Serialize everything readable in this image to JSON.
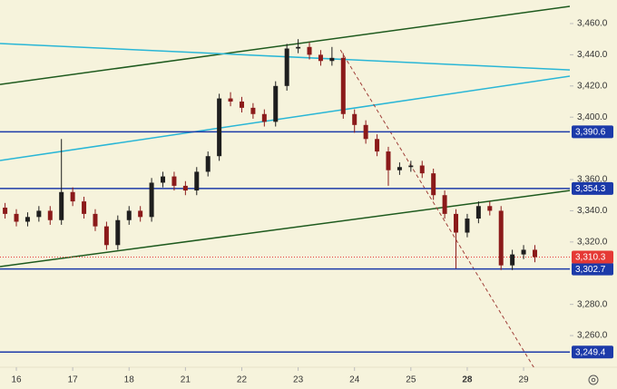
{
  "chart_data": {
    "type": "candlestick",
    "x": [
      -0.2,
      0,
      0.2,
      0.4,
      0.6,
      0.8,
      1,
      1.2,
      1.4,
      1.6,
      1.8,
      2,
      2.2,
      2.4,
      2.6,
      2.8,
      3,
      3.2,
      3.4,
      3.6,
      3.8,
      4,
      4.2,
      4.4,
      4.6,
      4.8,
      5,
      5.2,
      5.4,
      5.6,
      5.8,
      6,
      6.2,
      6.4,
      6.6,
      6.8,
      7,
      7.2,
      7.4,
      7.6,
      7.8,
      8,
      8.2,
      8.4,
      8.6,
      8.8,
      9,
      9.2
    ],
    "open": [
      3342,
      3338,
      3333,
      3336,
      3340,
      3334,
      3352,
      3346,
      3338,
      3330,
      3318,
      3334,
      3340,
      3336,
      3358,
      3362,
      3356,
      3353,
      3365,
      3375,
      3412,
      3410,
      3406,
      3402,
      3397,
      3420,
      3444,
      3445,
      3440,
      3436,
      3438,
      3402,
      3395,
      3386,
      3378,
      3366,
      3368,
      3369,
      3364,
      3350,
      3338,
      3326,
      3335,
      3343,
      3340,
      3305,
      3312,
      3315
    ],
    "high": [
      3345,
      3341,
      3339,
      3343,
      3343,
      3386,
      3355,
      3349,
      3341,
      3333,
      3337,
      3343,
      3343,
      3361,
      3365,
      3365,
      3359,
      3368,
      3378,
      3415,
      3416,
      3413,
      3409,
      3405,
      3423,
      3447,
      3450,
      3448,
      3443,
      3445,
      3441,
      3405,
      3398,
      3389,
      3381,
      3371,
      3372,
      3372,
      3367,
      3353,
      3341,
      3338,
      3346,
      3346,
      3343,
      3315,
      3318,
      3318
    ],
    "low": [
      3335,
      3330,
      3330,
      3333,
      3331,
      3331,
      3343,
      3335,
      3327,
      3315,
      3315,
      3331,
      3333,
      3333,
      3355,
      3353,
      3350,
      3350,
      3362,
      3372,
      3407,
      3403,
      3399,
      3394,
      3394,
      3417,
      3441,
      3437,
      3433,
      3433,
      3399,
      3390,
      3383,
      3375,
      3356,
      3363,
      3365,
      3361,
      3347,
      3335,
      3303,
      3323,
      3332,
      3337,
      3302,
      3302,
      3309,
      3307
    ],
    "close": [
      3338,
      3333,
      3336,
      3340,
      3334,
      3352,
      3346,
      3338,
      3330,
      3318,
      3334,
      3340,
      3336,
      3358,
      3362,
      3356,
      3353,
      3365,
      3375,
      3412,
      3410,
      3406,
      3402,
      3397,
      3420,
      3444,
      3445,
      3440,
      3436,
      3438,
      3402,
      3395,
      3386,
      3378,
      3366,
      3368,
      3369,
      3364,
      3350,
      3338,
      3326,
      3335,
      3343,
      3340,
      3305,
      3312,
      3315,
      3310.3
    ],
    "up_color": "#1e1e1e",
    "down_color": "#8b1a1a",
    "xlim": [
      -0.29,
      9.82
    ],
    "ylim": [
      3239.7,
      3475.1
    ],
    "xticks": [
      {
        "value": 0,
        "label": "16"
      },
      {
        "value": 1,
        "label": "17"
      },
      {
        "value": 2,
        "label": "18"
      },
      {
        "value": 3,
        "label": "21"
      },
      {
        "value": 4,
        "label": "22"
      },
      {
        "value": 5,
        "label": "23"
      },
      {
        "value": 6,
        "label": "24"
      },
      {
        "value": 7,
        "label": "25"
      },
      {
        "value": 8,
        "label": "28"
      },
      {
        "value": 9,
        "label": "29"
      }
    ],
    "yticks": [
      {
        "value": 3460,
        "label": "3,460.0"
      },
      {
        "value": 3440,
        "label": "3,440.0"
      },
      {
        "value": 3420,
        "label": "3,420.0"
      },
      {
        "value": 3400,
        "label": "3,400.0"
      },
      {
        "value": 3360,
        "label": "3,360.0"
      },
      {
        "value": 3340,
        "label": "3,340.0"
      },
      {
        "value": 3320,
        "label": "3,320.0"
      },
      {
        "value": 3280,
        "label": "3,280.0"
      },
      {
        "value": 3260,
        "label": "3,260.0"
      }
    ],
    "levels": [
      {
        "value": 3390.6,
        "label": "3,390.6",
        "color": "#1c3aa9"
      },
      {
        "value": 3354.3,
        "label": "3,354.3",
        "color": "#1c3aa9"
      },
      {
        "value": 3302.7,
        "label": "3,302.7",
        "color": "#1c3aa9"
      },
      {
        "value": 3249.4,
        "label": "3,249.4",
        "color": "#1c3aa9"
      },
      {
        "value": 3310.3,
        "label": "3,310.3",
        "color": "#e53935",
        "dotted": true
      }
    ],
    "trendlines": [
      {
        "color": "#1e5a1e",
        "x": [
          -0.29,
          9.82
        ],
        "y": [
          3421.0,
          3471.0
        ]
      },
      {
        "color": "#1e5a1e",
        "x": [
          -0.29,
          9.82
        ],
        "y": [
          3304.2,
          3353.0
        ]
      },
      {
        "color": "#29b6d6",
        "x": [
          -0.29,
          9.82
        ],
        "y": [
          3447.2,
          3430.3
        ]
      },
      {
        "color": "#29b6d6",
        "x": [
          -0.29,
          9.82
        ],
        "y": [
          3372.2,
          3426.3
        ]
      },
      {
        "color": "#a0403a",
        "x": [
          5.75,
          9.21
        ],
        "y": [
          3443.1,
          3237.9
        ],
        "dashed": true
      }
    ]
  }
}
